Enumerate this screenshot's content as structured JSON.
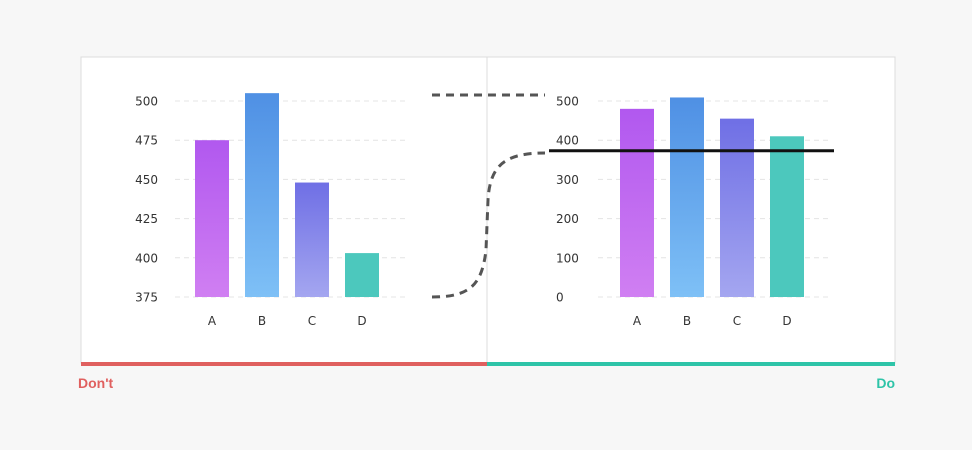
{
  "labels": {
    "dont": "Don't",
    "do": "Do"
  },
  "colors": {
    "dont": "#e0605f",
    "do": "#2ec4a8",
    "panel_bg": "#ffffff",
    "panel_border": "#dcdcdc",
    "grid": "#e4e4e4",
    "connector": "#555555",
    "reference_line": "#111111",
    "bar_gradients": {
      "A": [
        "#b158ef",
        "#d07ff2"
      ],
      "B": [
        "#4f90e4",
        "#7ec0f6"
      ],
      "C": [
        "#6f6fe5",
        "#a4a6f0"
      ],
      "D": [
        "#4cc8bd",
        "#4cc8bd"
      ]
    }
  },
  "chart_data": [
    {
      "type": "bar",
      "categories": [
        "A",
        "B",
        "C",
        "D"
      ],
      "values": [
        475,
        505,
        448,
        403
      ],
      "ylim": [
        375,
        510
      ],
      "yticks": [
        375,
        400,
        425,
        450,
        475,
        500
      ],
      "grid": true
    },
    {
      "type": "bar",
      "categories": [
        "A",
        "B",
        "C",
        "D"
      ],
      "values": [
        480,
        509,
        455,
        410
      ],
      "ylim": [
        0,
        520
      ],
      "yticks": [
        0,
        100,
        200,
        300,
        400,
        500
      ],
      "reference_line": 373,
      "grid": true
    }
  ]
}
